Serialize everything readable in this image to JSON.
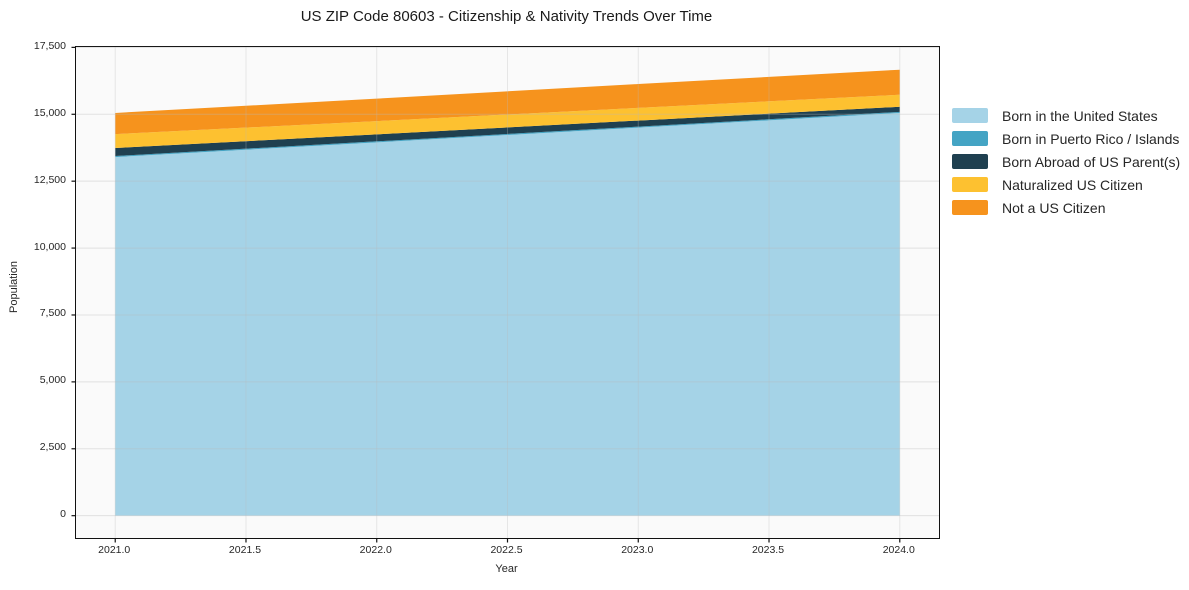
{
  "title": "US ZIP Code 80603 - Citizenship & Nativity Trends Over Time",
  "axes": {
    "x_label": "Year",
    "y_label": "Population"
  },
  "chart_data": {
    "type": "area",
    "stacked": true,
    "title": "US ZIP Code 80603 - Citizenship & Nativity Trends Over Time",
    "xlabel": "Year",
    "ylabel": "Population",
    "x": [
      2021,
      2022,
      2023,
      2024
    ],
    "series": [
      {
        "name": "Born in the United States",
        "color": "#A5D3E7",
        "values": [
          13400,
          13950,
          14500,
          15050
        ]
      },
      {
        "name": "Born in Puerto Rico / Islands",
        "color": "#44A4C4",
        "values": [
          40,
          40,
          40,
          40
        ]
      },
      {
        "name": "Born Abroad of US Parent(s)",
        "color": "#1F4050",
        "values": [
          300,
          260,
          225,
          190
        ]
      },
      {
        "name": "Naturalized US Citizen",
        "color": "#FDC130",
        "values": [
          520,
          495,
          475,
          450
        ]
      },
      {
        "name": "Not a US Citizen",
        "color": "#F6931D",
        "values": [
          790,
          840,
          890,
          935
        ]
      }
    ],
    "xlim": [
      2020.85,
      2024.15
    ],
    "ylim": [
      -834,
      17514
    ],
    "xticks": [
      2021.0,
      2021.5,
      2022.0,
      2022.5,
      2023.0,
      2023.5,
      2024.0
    ],
    "xtick_labels": [
      "2021.0",
      "2021.5",
      "2022.0",
      "2022.5",
      "2023.0",
      "2023.5",
      "2024.0"
    ],
    "yticks": [
      0,
      2500,
      5000,
      7500,
      10000,
      12500,
      15000,
      17500
    ],
    "ytick_labels": [
      "0",
      "2,500",
      "5,000",
      "7,500",
      "10,000",
      "12,500",
      "15,000",
      "17,500"
    ],
    "grid": true,
    "legend_position": "right"
  }
}
